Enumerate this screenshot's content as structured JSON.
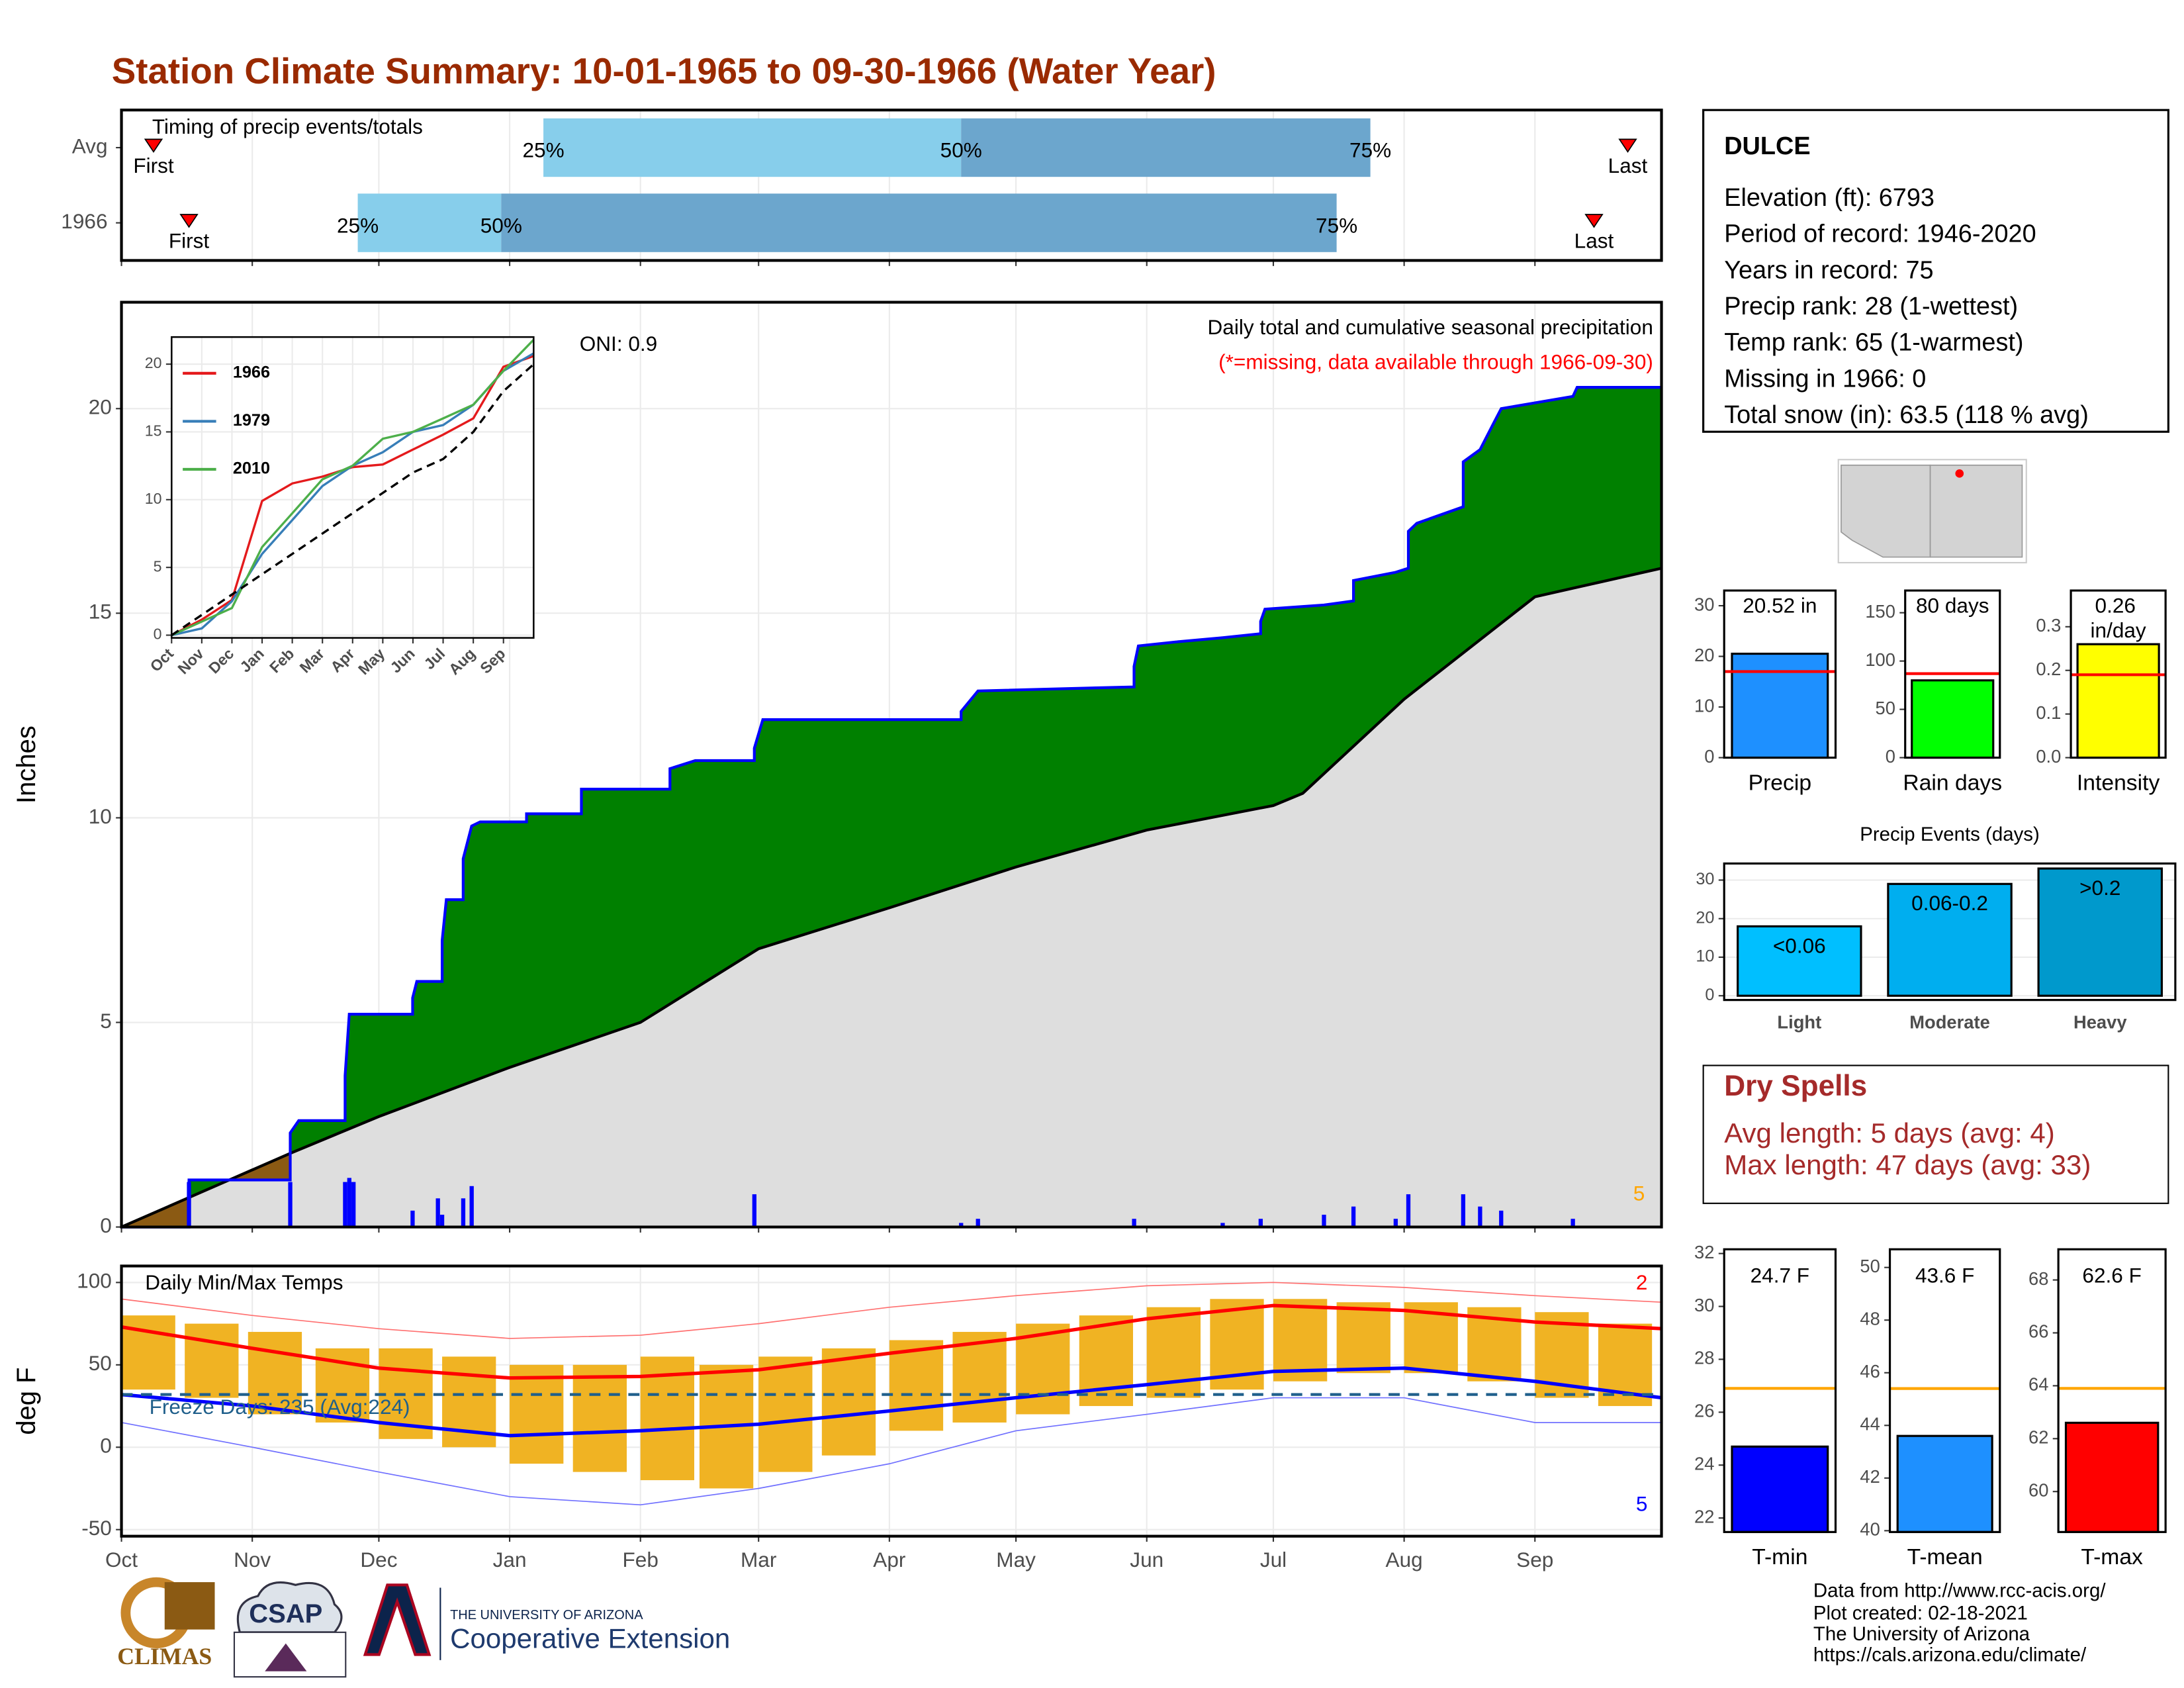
{
  "title": "Station Climate Summary: 10-01-1965 to 09-30-1966 (Water Year)",
  "station": {
    "name": "DULCE",
    "lines": [
      "Elevation (ft): 6793",
      "Period of record: 1946-2020",
      "Years in record: 75",
      "Precip rank: 28 (1-wettest)",
      "Temp rank: 65 (1-warmest)",
      "Missing in 1966: 0",
      "Total snow (in): 63.5 (118 % avg)"
    ]
  },
  "dry_spells": {
    "title": "Dry Spells",
    "lines": [
      "Avg length: 5 days (avg: 4)",
      "Max length: 47 days (avg: 33)"
    ]
  },
  "footer": [
    "Data from http://www.rcc-acis.org/",
    "Plot created: 02-18-2021",
    "The University of Arizona",
    "https://cals.arizona.edu/climate/"
  ],
  "logos": [
    "CLIMAS",
    "CSAP",
    "THE UNIVERSITY OF ARIZONA",
    "Cooperative Extension"
  ],
  "chart_data": [
    {
      "type": "timeline",
      "title": "Timing of precip events/totals",
      "categories": [
        "Avg",
        "1966"
      ],
      "xlim": [
        0,
        365
      ],
      "xticks": [
        0,
        31,
        61,
        92,
        123,
        151,
        182,
        212,
        243,
        273,
        304,
        335
      ],
      "grid": true,
      "series": [
        {
          "name": "First",
          "marker": "triangle",
          "color": "#ff0000",
          "values": [
            7.6,
            16
          ]
        },
        {
          "name": "25%",
          "color": "#87ceeb",
          "values": [
            100,
            56
          ]
        },
        {
          "name": "50%",
          "color": "#6ca6cd",
          "values": [
            199,
            90
          ]
        },
        {
          "name": "75%",
          "values": [
            296,
            288
          ]
        },
        {
          "name": "Last",
          "marker": "triangle",
          "color": "#ff0000",
          "values": [
            357,
            349
          ]
        }
      ]
    },
    {
      "type": "area",
      "title": "Daily total and cumulative seasonal precipitation",
      "subtitle": "(*=missing, data available through 1966-09-30)",
      "oni": "ONI: 0.9",
      "y_label": "Inches",
      "count": 5,
      "count_color": "#ffa500",
      "xlim": [
        0,
        365
      ],
      "ylim": [
        0,
        22.6
      ],
      "xticks": [
        0,
        31,
        61,
        92,
        123,
        151,
        182,
        212,
        243,
        273,
        304,
        335
      ],
      "yticks": [
        0,
        5,
        10,
        15,
        20
      ],
      "grid": true,
      "above_color": "#008000",
      "below_color": "#8b5a13",
      "shared_color": "#dedede",
      "cumulative": {
        "color": "#0000ff",
        "x": [
          0,
          16,
          16,
          40,
          40,
          42,
          53,
          53,
          54,
          69,
          69,
          70,
          76,
          76,
          77,
          81,
          81,
          83,
          85,
          96,
          96,
          109,
          109,
          130,
          130,
          136,
          150,
          150,
          152,
          199,
          199,
          203,
          240,
          240,
          241,
          250,
          261,
          270,
          270,
          271,
          285,
          292,
          292,
          302,
          305,
          305,
          307,
          318,
          318,
          322,
          325,
          327,
          344,
          345,
          365
        ],
        "values": [
          0,
          0,
          1.15,
          1.15,
          2.3,
          2.6,
          2.6,
          3.7,
          5.2,
          5.2,
          5.6,
          6.0,
          6.0,
          7.0,
          8.0,
          8.0,
          9.0,
          9.8,
          9.9,
          9.9,
          10.1,
          10.1,
          10.7,
          10.7,
          11.2,
          11.4,
          11.4,
          11.7,
          12.4,
          12.4,
          12.6,
          13.1,
          13.2,
          13.7,
          14.2,
          14.3,
          14.4,
          14.5,
          14.8,
          15.1,
          15.2,
          15.3,
          15.8,
          16.0,
          16.1,
          17.0,
          17.2,
          17.6,
          18.7,
          19.0,
          19.6,
          20.0,
          20.3,
          20.52,
          20.52
        ]
      },
      "average": {
        "color": "#000000",
        "x": [
          0,
          40,
          61,
          92,
          123,
          151,
          182,
          212,
          243,
          273,
          280,
          304,
          335,
          365
        ],
        "values": [
          0,
          1.8,
          2.7,
          3.9,
          5.0,
          6.8,
          7.8,
          8.8,
          9.7,
          10.3,
          10.6,
          12.9,
          15.4,
          16.1
        ]
      },
      "daily": {
        "color": "#0000ff",
        "x": [
          16,
          40,
          53,
          54,
          55,
          69,
          75,
          76,
          81,
          83,
          150,
          199,
          203,
          240,
          261,
          270,
          285,
          292,
          302,
          305,
          318,
          322,
          327,
          344
        ],
        "values": [
          1.1,
          1.1,
          1.1,
          1.2,
          1.1,
          0.4,
          0.7,
          0.3,
          0.7,
          1.0,
          0.8,
          0.1,
          0.2,
          0.2,
          0.1,
          0.2,
          0.3,
          0.5,
          0.2,
          0.8,
          0.8,
          0.5,
          0.4,
          0.2
        ]
      }
    },
    {
      "type": "line",
      "xlim": [
        0,
        12
      ],
      "ylim": [
        -0.2,
        22
      ],
      "yticks": [
        0,
        5,
        10,
        15,
        20
      ],
      "xticks": [
        {
          "value": 0,
          "label": "Oct"
        },
        {
          "value": 1,
          "label": "Nov"
        },
        {
          "value": 2,
          "label": "Dec"
        },
        {
          "value": 3,
          "label": "Jan"
        },
        {
          "value": 4,
          "label": "Feb"
        },
        {
          "value": 5,
          "label": "Mar"
        },
        {
          "value": 6,
          "label": "Apr"
        },
        {
          "value": 7,
          "label": "May"
        },
        {
          "value": 8,
          "label": "Jun"
        },
        {
          "value": 9,
          "label": "Jul"
        },
        {
          "value": 10,
          "label": "Aug"
        },
        {
          "value": 11,
          "label": "Sep"
        }
      ],
      "grid": true,
      "x": [
        0,
        1,
        2,
        3,
        4,
        5,
        6,
        7,
        8,
        9,
        10,
        11,
        12
      ],
      "series": [
        {
          "name": "1966",
          "color": "#e41a1c",
          "values": [
            0,
            1.15,
            2.6,
            9.9,
            11.2,
            11.7,
            12.4,
            12.6,
            13.7,
            14.8,
            16.0,
            19.8,
            20.6
          ]
        },
        {
          "name": "1979",
          "color": "#377eb8",
          "values": [
            0,
            0.5,
            2.5,
            6,
            8.5,
            11,
            12.5,
            13.5,
            15,
            15.5,
            17,
            19.5,
            20.8
          ]
        },
        {
          "name": "2010",
          "color": "#4daf4a",
          "values": [
            0,
            1,
            2,
            6.5,
            9,
            11.5,
            12.5,
            14.5,
            15,
            16,
            17,
            19.5,
            21.8
          ]
        },
        {
          "color": "#000000",
          "dash": true,
          "values": [
            0,
            1.5,
            3,
            4.5,
            6,
            7.5,
            9,
            10.5,
            12,
            13,
            15,
            18,
            20
          ]
        }
      ]
    },
    {
      "type": "temperature",
      "title": "Daily Min/Max Temps",
      "y_label": "deg F",
      "freeze_label": "Freeze Days: 235 (Avg:224)",
      "max_count": 2,
      "min_count": 5,
      "xlim": [
        0,
        365
      ],
      "ylim": [
        -54,
        110
      ],
      "yticks": [
        -50,
        0,
        50,
        100
      ],
      "grid": true,
      "xticks": [
        {
          "value": 0,
          "label": "Oct"
        },
        {
          "value": 31,
          "label": "Nov"
        },
        {
          "value": 61,
          "label": "Dec"
        },
        {
          "value": 92,
          "label": "Jan"
        },
        {
          "value": 123,
          "label": "Feb"
        },
        {
          "value": 151,
          "label": "Mar"
        },
        {
          "value": 182,
          "label": "Apr"
        },
        {
          "value": 212,
          "label": "May"
        },
        {
          "value": 243,
          "label": "Jun"
        },
        {
          "value": 273,
          "label": "Jul"
        },
        {
          "value": 304,
          "label": "Aug"
        },
        {
          "value": 335,
          "label": "Sep"
        }
      ],
      "x": [
        0,
        31,
        61,
        92,
        123,
        151,
        182,
        212,
        243,
        273,
        304,
        335,
        365
      ],
      "record_max": {
        "color": "#ff7070",
        "values": [
          90,
          80,
          72,
          66,
          68,
          75,
          85,
          92,
          98,
          100,
          97,
          92,
          88
        ]
      },
      "record_min": {
        "color": "#7070ff",
        "values": [
          15,
          0,
          -15,
          -30,
          -35,
          -25,
          -10,
          10,
          20,
          30,
          30,
          15,
          15
        ]
      },
      "avg_max": {
        "color": "#ff0000",
        "values": [
          73,
          60,
          48,
          42,
          43,
          47,
          57,
          66,
          78,
          86,
          83,
          76,
          72
        ]
      },
      "avg_min": {
        "color": "#0000ff",
        "values": [
          32,
          25,
          15,
          7,
          10,
          14,
          22,
          30,
          38,
          46,
          48,
          40,
          30
        ]
      },
      "observed": {
        "color": "#f0b323",
        "x": [
          0,
          15,
          30,
          46,
          61,
          76,
          92,
          107,
          123,
          137,
          151,
          166,
          182,
          197,
          212,
          227,
          243,
          258,
          273,
          288,
          304,
          319,
          335,
          350
        ],
        "low": [
          35,
          30,
          20,
          15,
          5,
          0,
          -10,
          -15,
          -20,
          -25,
          -15,
          -5,
          10,
          15,
          20,
          25,
          30,
          35,
          40,
          45,
          45,
          40,
          30,
          25
        ],
        "high": [
          80,
          75,
          70,
          60,
          60,
          55,
          50,
          50,
          55,
          50,
          55,
          60,
          65,
          70,
          75,
          80,
          85,
          90,
          90,
          88,
          88,
          85,
          82,
          75
        ]
      },
      "freeze": {
        "value": 32,
        "color": "#1f5f8b"
      }
    },
    {
      "type": "bar",
      "categories": [
        "Precip"
      ],
      "values": [
        20.52
      ],
      "value_labels": [
        "20.52 in"
      ],
      "avg": 17,
      "avg_color": "#ff0000",
      "color": "#1e90ff",
      "ylim": [
        0,
        33
      ],
      "yticks": [
        0,
        10,
        20,
        30
      ]
    },
    {
      "type": "bar",
      "categories": [
        "Rain days"
      ],
      "values": [
        80
      ],
      "value_labels": [
        "80 days"
      ],
      "avg": 87,
      "avg_color": "#ff0000",
      "color": "#00ff00",
      "ylim": [
        0,
        173
      ],
      "yticks": [
        0,
        50,
        100,
        150
      ]
    },
    {
      "type": "bar",
      "categories": [
        "Intensity"
      ],
      "values": [
        0.26
      ],
      "value_labels": [
        "0.26 in/day"
      ],
      "avg": 0.19,
      "avg_color": "#ff0000",
      "color": "#ffff00",
      "ylim": [
        0,
        0.383
      ],
      "yticks": [
        {
          "value": 0,
          "label": "0.0"
        },
        0.1,
        0.2,
        0.3
      ]
    },
    {
      "type": "bar",
      "title": "Precip Events (days)",
      "categories": [
        "Light",
        "Moderate",
        "Heavy"
      ],
      "values": [
        18,
        29,
        33
      ],
      "bin_labels": [
        "<0.06",
        "0.06-0.2",
        ">0.2"
      ],
      "colors": [
        "#00bfff",
        "#00aeef",
        "#0099cc"
      ],
      "ylim": [
        -1.1,
        34.3
      ],
      "yticks": [
        0,
        10,
        20,
        30
      ],
      "grid": true
    },
    {
      "type": "bar",
      "categories": [
        "T-min"
      ],
      "values": [
        24.7
      ],
      "value_labels": [
        "24.7 F"
      ],
      "avg": 26.9,
      "avg_color": "#ffa500",
      "color": "#0000ff",
      "ylim": [
        21.47,
        32.16
      ],
      "yticks": [
        22,
        24,
        26,
        28,
        30,
        32
      ]
    },
    {
      "type": "bar",
      "categories": [
        "T-mean"
      ],
      "values": [
        43.6
      ],
      "value_labels": [
        "43.6 F"
      ],
      "avg": 45.4,
      "avg_color": "#ffa500",
      "color": "#1e90ff",
      "ylim": [
        39.95,
        50.69
      ],
      "yticks": [
        40,
        42,
        44,
        46,
        48,
        50
      ]
    },
    {
      "type": "bar",
      "categories": [
        "T-max"
      ],
      "values": [
        62.6
      ],
      "value_labels": [
        "62.6 F"
      ],
      "avg": 63.9,
      "avg_color": "#ffa500",
      "color": "#ff0000",
      "ylim": [
        58.47,
        69.16
      ],
      "yticks": [
        60,
        62,
        64,
        66,
        68
      ]
    }
  ]
}
